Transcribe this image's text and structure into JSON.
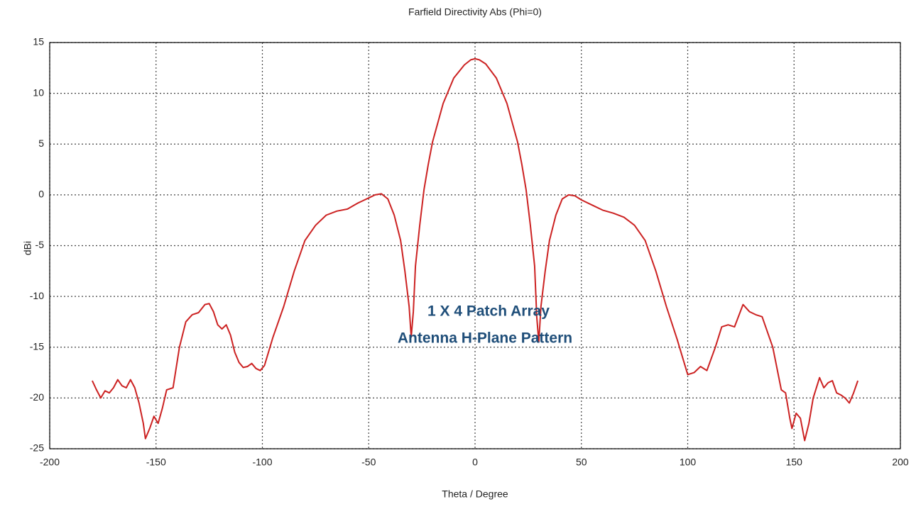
{
  "chart_data": {
    "type": "line",
    "title": "Farfield Directivity Abs (Phi=0)",
    "x_label": "Theta / Degree",
    "y_label": "dBi",
    "annotations": [
      "1 X 4 Patch Array",
      "Antenna H-Plane Pattern"
    ],
    "color": "#cc2222",
    "grid": true,
    "xlim": [
      -200,
      200
    ],
    "xticks": [
      -200,
      -150,
      -100,
      -50,
      0,
      50,
      100,
      150,
      200
    ],
    "ylim": [
      -25,
      15
    ],
    "yticks": [
      -25,
      -20,
      -15,
      -10,
      -5,
      0,
      5,
      10,
      15
    ],
    "x": [
      -180,
      -178,
      -176,
      -174,
      -172,
      -170,
      -168,
      -166,
      -164,
      -162,
      -160,
      -158,
      -156,
      -155,
      -153,
      -151,
      -149,
      -147,
      -145,
      -142,
      -139,
      -136,
      -133,
      -130,
      -127,
      -125,
      -123,
      -121,
      -119,
      -117,
      -115,
      -113,
      -111,
      -109,
      -107,
      -105,
      -103,
      -101,
      -99,
      -95,
      -90,
      -85,
      -80,
      -75,
      -70,
      -65,
      -60,
      -55,
      -50,
      -47,
      -44,
      -41,
      -38,
      -35,
      -33,
      -31,
      -30,
      -29,
      -28,
      -26,
      -24,
      -22,
      -20,
      -15,
      -10,
      -5,
      -2,
      0,
      2,
      5,
      10,
      15,
      20,
      22,
      24,
      26,
      28,
      29,
      30,
      31,
      33,
      35,
      38,
      41,
      44,
      47,
      50,
      55,
      60,
      65,
      70,
      75,
      80,
      85,
      90,
      95,
      100,
      103,
      106,
      109,
      113,
      116,
      119,
      122,
      126,
      129,
      132,
      135,
      140,
      144,
      146,
      148,
      149,
      151,
      153,
      155,
      157,
      159,
      162,
      164,
      166,
      168,
      170,
      172,
      174,
      176,
      178,
      180
    ],
    "values": [
      -18.3,
      -19.2,
      -20,
      -19.3,
      -19.5,
      -19,
      -18.2,
      -18.8,
      -19,
      -18.2,
      -19,
      -20.5,
      -22.5,
      -24,
      -23,
      -21.8,
      -22.5,
      -21,
      -19.2,
      -19,
      -15,
      -12.5,
      -11.8,
      -11.6,
      -10.8,
      -10.7,
      -11.5,
      -12.8,
      -13.2,
      -12.8,
      -13.8,
      -15.5,
      -16.5,
      -17,
      -16.9,
      -16.6,
      -17.1,
      -17.3,
      -16.8,
      -14,
      -11,
      -7.5,
      -4.5,
      -3,
      -2,
      -1.6,
      -1.4,
      -0.8,
      -0.3,
      0,
      0.1,
      -0.4,
      -2,
      -4.5,
      -7.5,
      -11,
      -14,
      -11.5,
      -7,
      -3,
      0.5,
      3,
      5.2,
      9,
      11.5,
      12.8,
      13.3,
      13.4,
      13.3,
      12.9,
      11.5,
      9,
      5.2,
      3,
      0.5,
      -3,
      -7,
      -12,
      -14.5,
      -11,
      -7.5,
      -4.5,
      -2,
      -0.4,
      0,
      -0.1,
      -0.5,
      -1,
      -1.5,
      -1.8,
      -2.2,
      -3,
      -4.5,
      -7.5,
      -11,
      -14.2,
      -17.7,
      -17.5,
      -16.9,
      -17.3,
      -15,
      -13,
      -12.8,
      -13,
      -10.8,
      -11.5,
      -11.8,
      -12,
      -15,
      -19.2,
      -19.5,
      -22,
      -23,
      -21.5,
      -22,
      -24.2,
      -22.5,
      -20,
      -18,
      -19,
      -18.5,
      -18.3,
      -19.5,
      -19.7,
      -20,
      -20.5,
      -19.5,
      -18.3
    ]
  }
}
